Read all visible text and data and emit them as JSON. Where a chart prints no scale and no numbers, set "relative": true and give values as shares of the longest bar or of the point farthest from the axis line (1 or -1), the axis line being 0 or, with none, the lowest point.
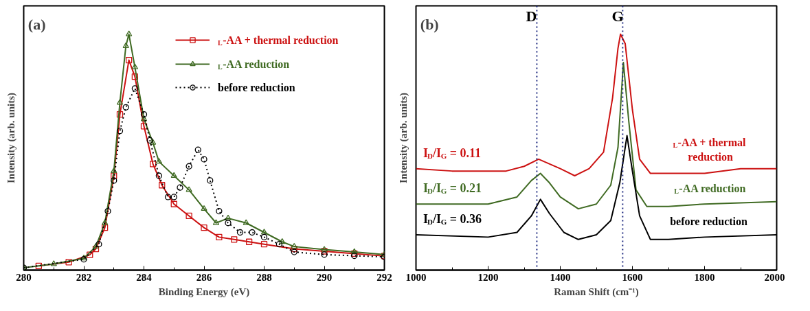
{
  "chart_data": [
    {
      "type": "line",
      "title": "(a)",
      "xlabel": "Binding Energy (eV)",
      "ylabel": "Intensity (arb. units)",
      "relative": true,
      "xlim": [
        280,
        292
      ],
      "xticks": [
        280,
        282,
        284,
        286,
        288,
        290,
        292
      ],
      "tick_labels": "x",
      "grid": false,
      "legend": "top right",
      "line_style": "solid",
      "series": [
        {
          "name": "$_{L}$-AA + thermal reduction",
          "color": "#cc1111",
          "marker": "square",
          "x": [
            280.5,
            281.5,
            282.2,
            282.4,
            282.7,
            283.0,
            283.2,
            283.5,
            283.7,
            284.0,
            284.3,
            284.6,
            285.0,
            285.5,
            286.0,
            286.5,
            287.0,
            287.5,
            288.0,
            289.0,
            290.0,
            291.0,
            292.0
          ],
          "values": [
            0.018,
            0.034,
            0.065,
            0.09,
            0.18,
            0.4,
            0.66,
            0.89,
            0.82,
            0.61,
            0.45,
            0.36,
            0.28,
            0.23,
            0.18,
            0.14,
            0.13,
            0.12,
            0.11,
            0.09,
            0.08,
            0.07,
            0.06
          ]
        },
        {
          "name": "$_{L}$-AA reduction",
          "color": "#3f6a22",
          "marker": "triangle",
          "x": [
            280,
            281,
            282,
            282.4,
            282.7,
            283.0,
            283.2,
            283.4,
            283.5,
            283.7,
            284.0,
            284.3,
            284.5,
            285.0,
            285.5,
            286.0,
            286.4,
            286.8,
            287.4,
            288.0,
            288.6,
            289.0,
            290.0,
            291.0,
            292.0
          ],
          "values": [
            0.01,
            0.026,
            0.05,
            0.1,
            0.2,
            0.42,
            0.71,
            0.95,
            1.0,
            0.86,
            0.64,
            0.54,
            0.46,
            0.4,
            0.34,
            0.26,
            0.2,
            0.22,
            0.2,
            0.16,
            0.12,
            0.1,
            0.087,
            0.077,
            0.066
          ]
        },
        {
          "name": "before reduction",
          "color": "#000000",
          "marker": "circle",
          "line_style": "dotted",
          "x": [
            280,
            282,
            282.5,
            282.8,
            283.0,
            283.2,
            283.4,
            283.7,
            284.0,
            284.2,
            284.5,
            284.8,
            285.0,
            285.2,
            285.5,
            285.8,
            286.0,
            286.2,
            286.5,
            286.8,
            287.2,
            287.6,
            288.0,
            288.5,
            289.0,
            290.0,
            291.0,
            292.0
          ],
          "values": [
            0.01,
            0.046,
            0.11,
            0.25,
            0.38,
            0.59,
            0.69,
            0.77,
            0.66,
            0.55,
            0.4,
            0.31,
            0.31,
            0.35,
            0.44,
            0.51,
            0.47,
            0.38,
            0.25,
            0.2,
            0.16,
            0.16,
            0.14,
            0.11,
            0.077,
            0.066,
            0.061,
            0.056
          ]
        }
      ]
    },
    {
      "type": "line",
      "title": "(b)",
      "xlabel": "Raman Shift (cm⁻¹)",
      "ylabel": "Intensity (arb. units)",
      "relative": true,
      "xlim": [
        1000,
        2000
      ],
      "xticks": [
        1000,
        1200,
        1400,
        1600,
        1800,
        2000
      ],
      "tick_labels": "x",
      "grid": false,
      "legend": false,
      "line_style": "solid",
      "annotations": [
        "I$_{D}$/I$_{G}$ = 0.11",
        "I$_{D}$/I$_{G}$ = 0.21",
        "I$_{D}$/I$_{G}$ = 0.36"
      ],
      "ref_lines": [
        {
          "axis": "x",
          "value": 1335,
          "label": "D",
          "color": "#1f2a80",
          "line_style": "dotted"
        },
        {
          "axis": "x",
          "value": 1573,
          "label": "G",
          "color": "#1f2a80",
          "line_style": "dotted"
        }
      ],
      "series": [
        {
          "name": "$_{L}$-AA + thermal reduction",
          "color": "#cc1111",
          "x": [
            1000,
            1100,
            1200,
            1250,
            1300,
            1340,
            1400,
            1440,
            1480,
            1520,
            1545,
            1560,
            1567,
            1580,
            1600,
            1620,
            1650,
            1700,
            1800,
            1900,
            2000
          ],
          "values": [
            0.43,
            0.42,
            0.42,
            0.42,
            0.44,
            0.47,
            0.43,
            0.4,
            0.43,
            0.5,
            0.73,
            0.94,
            1.0,
            0.96,
            0.68,
            0.47,
            0.41,
            0.41,
            0.41,
            0.43,
            0.43
          ]
        },
        {
          "name": "$_{L}$-AA reduction",
          "color": "#3f6a22",
          "x": [
            1000,
            1200,
            1280,
            1320,
            1345,
            1370,
            1400,
            1450,
            1500,
            1540,
            1560,
            1575,
            1590,
            1610,
            1640,
            1700,
            1800,
            2000
          ],
          "values": [
            0.28,
            0.28,
            0.31,
            0.38,
            0.41,
            0.37,
            0.31,
            0.26,
            0.28,
            0.36,
            0.52,
            0.88,
            0.63,
            0.34,
            0.27,
            0.27,
            0.28,
            0.29
          ]
        },
        {
          "name": "before reduction",
          "color": "#000000",
          "x": [
            1000,
            1200,
            1280,
            1320,
            1345,
            1370,
            1410,
            1450,
            1500,
            1540,
            1565,
            1585,
            1600,
            1620,
            1650,
            1700,
            1800,
            2000
          ],
          "values": [
            0.15,
            0.14,
            0.16,
            0.23,
            0.3,
            0.24,
            0.16,
            0.13,
            0.15,
            0.21,
            0.37,
            0.57,
            0.42,
            0.23,
            0.13,
            0.13,
            0.14,
            0.15
          ]
        }
      ]
    }
  ]
}
